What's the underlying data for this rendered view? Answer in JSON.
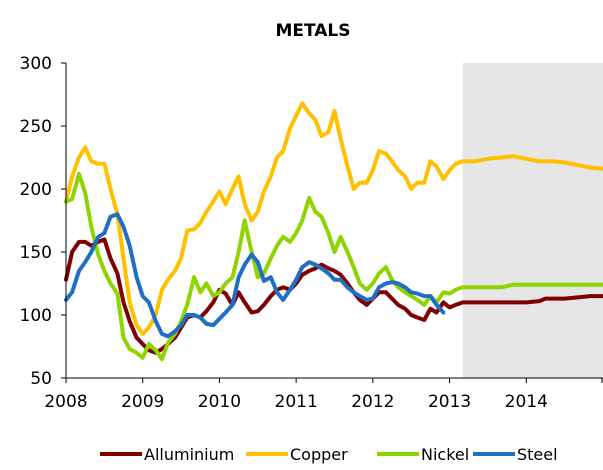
{
  "chart_data": {
    "type": "line",
    "title": "METALS",
    "xlabel": "",
    "ylabel": "",
    "xlim": [
      2008,
      2015
    ],
    "ylim": [
      50,
      300
    ],
    "yticks": [
      50,
      100,
      150,
      200,
      250,
      300
    ],
    "xtick_labels": [
      "2008",
      "2009",
      "2010",
      "2011",
      "2012",
      "2013",
      "2014"
    ],
    "forecast_shade_from": 2013.17,
    "legend_position": "bottom",
    "series": [
      {
        "name": "Alluminium",
        "color": "#7f0000",
        "points": [
          [
            2008.0,
            128
          ],
          [
            2008.08,
            150
          ],
          [
            2008.17,
            158
          ],
          [
            2008.25,
            158
          ],
          [
            2008.33,
            155
          ],
          [
            2008.42,
            158
          ],
          [
            2008.5,
            160
          ],
          [
            2008.58,
            145
          ],
          [
            2008.67,
            133
          ],
          [
            2008.75,
            110
          ],
          [
            2008.83,
            95
          ],
          [
            2008.92,
            82
          ],
          [
            2009.0,
            77
          ],
          [
            2009.08,
            72
          ],
          [
            2009.17,
            70
          ],
          [
            2009.25,
            73
          ],
          [
            2009.33,
            77
          ],
          [
            2009.42,
            82
          ],
          [
            2009.5,
            90
          ],
          [
            2009.58,
            98
          ],
          [
            2009.67,
            100
          ],
          [
            2009.75,
            98
          ],
          [
            2009.83,
            103
          ],
          [
            2009.92,
            110
          ],
          [
            2010.0,
            120
          ],
          [
            2010.08,
            117
          ],
          [
            2010.17,
            108
          ],
          [
            2010.25,
            118
          ],
          [
            2010.33,
            110
          ],
          [
            2010.42,
            102
          ],
          [
            2010.5,
            103
          ],
          [
            2010.58,
            108
          ],
          [
            2010.67,
            115
          ],
          [
            2010.75,
            120
          ],
          [
            2010.83,
            122
          ],
          [
            2010.92,
            120
          ],
          [
            2011.0,
            125
          ],
          [
            2011.08,
            132
          ],
          [
            2011.17,
            135
          ],
          [
            2011.25,
            137
          ],
          [
            2011.33,
            140
          ],
          [
            2011.42,
            137
          ],
          [
            2011.5,
            135
          ],
          [
            2011.58,
            132
          ],
          [
            2011.67,
            125
          ],
          [
            2011.75,
            118
          ],
          [
            2011.83,
            112
          ],
          [
            2011.92,
            108
          ],
          [
            2012.0,
            113
          ],
          [
            2012.08,
            118
          ],
          [
            2012.17,
            118
          ],
          [
            2012.25,
            113
          ],
          [
            2012.33,
            108
          ],
          [
            2012.42,
            105
          ],
          [
            2012.5,
            100
          ],
          [
            2012.58,
            98
          ],
          [
            2012.67,
            96
          ],
          [
            2012.75,
            105
          ],
          [
            2012.83,
            102
          ],
          [
            2012.92,
            110
          ],
          [
            2013.0,
            106
          ],
          [
            2013.08,
            108
          ],
          [
            2013.17,
            110
          ],
          [
            2013.33,
            110
          ],
          [
            2013.5,
            110
          ],
          [
            2013.67,
            110
          ],
          [
            2013.83,
            110
          ],
          [
            2014.0,
            110
          ],
          [
            2014.17,
            111
          ],
          [
            2014.25,
            113
          ],
          [
            2014.5,
            113
          ],
          [
            2014.67,
            114
          ],
          [
            2014.83,
            115
          ],
          [
            2015.0,
            115
          ]
        ]
      },
      {
        "name": "Copper",
        "color": "#ffc000",
        "points": [
          [
            2008.0,
            190
          ],
          [
            2008.08,
            210
          ],
          [
            2008.17,
            225
          ],
          [
            2008.25,
            233
          ],
          [
            2008.33,
            222
          ],
          [
            2008.42,
            220
          ],
          [
            2008.5,
            220
          ],
          [
            2008.58,
            200
          ],
          [
            2008.67,
            180
          ],
          [
            2008.75,
            145
          ],
          [
            2008.83,
            110
          ],
          [
            2008.92,
            92
          ],
          [
            2009.0,
            85
          ],
          [
            2009.08,
            90
          ],
          [
            2009.17,
            100
          ],
          [
            2009.25,
            120
          ],
          [
            2009.33,
            128
          ],
          [
            2009.42,
            135
          ],
          [
            2009.5,
            145
          ],
          [
            2009.58,
            167
          ],
          [
            2009.67,
            168
          ],
          [
            2009.75,
            173
          ],
          [
            2009.83,
            182
          ],
          [
            2009.92,
            190
          ],
          [
            2010.0,
            198
          ],
          [
            2010.08,
            188
          ],
          [
            2010.17,
            200
          ],
          [
            2010.25,
            210
          ],
          [
            2010.33,
            188
          ],
          [
            2010.42,
            175
          ],
          [
            2010.5,
            182
          ],
          [
            2010.58,
            198
          ],
          [
            2010.67,
            210
          ],
          [
            2010.75,
            225
          ],
          [
            2010.83,
            230
          ],
          [
            2010.92,
            248
          ],
          [
            2011.0,
            258
          ],
          [
            2011.08,
            268
          ],
          [
            2011.17,
            260
          ],
          [
            2011.25,
            255
          ],
          [
            2011.33,
            242
          ],
          [
            2011.42,
            245
          ],
          [
            2011.5,
            262
          ],
          [
            2011.58,
            240
          ],
          [
            2011.67,
            218
          ],
          [
            2011.75,
            200
          ],
          [
            2011.83,
            205
          ],
          [
            2011.92,
            205
          ],
          [
            2012.0,
            215
          ],
          [
            2012.08,
            230
          ],
          [
            2012.17,
            228
          ],
          [
            2012.25,
            222
          ],
          [
            2012.33,
            215
          ],
          [
            2012.42,
            210
          ],
          [
            2012.5,
            200
          ],
          [
            2012.58,
            205
          ],
          [
            2012.67,
            205
          ],
          [
            2012.75,
            222
          ],
          [
            2012.83,
            218
          ],
          [
            2012.92,
            208
          ],
          [
            2013.0,
            215
          ],
          [
            2013.08,
            220
          ],
          [
            2013.17,
            222
          ],
          [
            2013.33,
            222
          ],
          [
            2013.5,
            224
          ],
          [
            2013.67,
            225
          ],
          [
            2013.83,
            226
          ],
          [
            2014.0,
            224
          ],
          [
            2014.17,
            222
          ],
          [
            2014.33,
            222
          ],
          [
            2014.5,
            221
          ],
          [
            2014.67,
            219
          ],
          [
            2014.83,
            217
          ],
          [
            2015.0,
            216
          ]
        ]
      },
      {
        "name": "Nickel",
        "color": "#8fd400",
        "points": [
          [
            2008.0,
            190
          ],
          [
            2008.08,
            192
          ],
          [
            2008.17,
            212
          ],
          [
            2008.25,
            197
          ],
          [
            2008.33,
            170
          ],
          [
            2008.42,
            148
          ],
          [
            2008.5,
            135
          ],
          [
            2008.58,
            125
          ],
          [
            2008.67,
            117
          ],
          [
            2008.75,
            82
          ],
          [
            2008.83,
            73
          ],
          [
            2008.92,
            70
          ],
          [
            2009.0,
            66
          ],
          [
            2009.08,
            77
          ],
          [
            2009.17,
            72
          ],
          [
            2009.25,
            65
          ],
          [
            2009.33,
            78
          ],
          [
            2009.42,
            85
          ],
          [
            2009.5,
            95
          ],
          [
            2009.58,
            108
          ],
          [
            2009.67,
            130
          ],
          [
            2009.75,
            118
          ],
          [
            2009.83,
            125
          ],
          [
            2009.92,
            115
          ],
          [
            2010.0,
            118
          ],
          [
            2010.08,
            125
          ],
          [
            2010.17,
            130
          ],
          [
            2010.25,
            150
          ],
          [
            2010.33,
            175
          ],
          [
            2010.42,
            150
          ],
          [
            2010.5,
            130
          ],
          [
            2010.58,
            133
          ],
          [
            2010.67,
            145
          ],
          [
            2010.75,
            155
          ],
          [
            2010.83,
            162
          ],
          [
            2010.92,
            158
          ],
          [
            2011.0,
            165
          ],
          [
            2011.08,
            175
          ],
          [
            2011.17,
            193
          ],
          [
            2011.25,
            182
          ],
          [
            2011.33,
            178
          ],
          [
            2011.42,
            165
          ],
          [
            2011.5,
            150
          ],
          [
            2011.58,
            162
          ],
          [
            2011.67,
            150
          ],
          [
            2011.75,
            138
          ],
          [
            2011.83,
            125
          ],
          [
            2011.92,
            120
          ],
          [
            2012.0,
            125
          ],
          [
            2012.08,
            133
          ],
          [
            2012.17,
            138
          ],
          [
            2012.25,
            128
          ],
          [
            2012.33,
            122
          ],
          [
            2012.42,
            118
          ],
          [
            2012.5,
            115
          ],
          [
            2012.58,
            112
          ],
          [
            2012.67,
            108
          ],
          [
            2012.75,
            115
          ],
          [
            2012.83,
            110
          ],
          [
            2012.92,
            118
          ],
          [
            2013.0,
            117
          ],
          [
            2013.08,
            120
          ],
          [
            2013.17,
            122
          ],
          [
            2013.33,
            122
          ],
          [
            2013.5,
            122
          ],
          [
            2013.67,
            122
          ],
          [
            2013.83,
            124
          ],
          [
            2014.0,
            124
          ],
          [
            2014.33,
            124
          ],
          [
            2014.67,
            124
          ],
          [
            2015.0,
            124
          ]
        ]
      },
      {
        "name": "Steel",
        "color": "#1f6fc5",
        "points": [
          [
            2008.0,
            112
          ],
          [
            2008.08,
            118
          ],
          [
            2008.17,
            135
          ],
          [
            2008.25,
            142
          ],
          [
            2008.33,
            150
          ],
          [
            2008.42,
            162
          ],
          [
            2008.5,
            165
          ],
          [
            2008.58,
            178
          ],
          [
            2008.67,
            180
          ],
          [
            2008.75,
            170
          ],
          [
            2008.83,
            155
          ],
          [
            2008.92,
            130
          ],
          [
            2009.0,
            115
          ],
          [
            2009.08,
            110
          ],
          [
            2009.17,
            95
          ],
          [
            2009.25,
            85
          ],
          [
            2009.33,
            83
          ],
          [
            2009.42,
            87
          ],
          [
            2009.5,
            92
          ],
          [
            2009.58,
            100
          ],
          [
            2009.67,
            100
          ],
          [
            2009.75,
            98
          ],
          [
            2009.83,
            93
          ],
          [
            2009.92,
            92
          ],
          [
            2010.0,
            97
          ],
          [
            2010.08,
            102
          ],
          [
            2010.17,
            108
          ],
          [
            2010.25,
            130
          ],
          [
            2010.33,
            140
          ],
          [
            2010.42,
            148
          ],
          [
            2010.5,
            142
          ],
          [
            2010.58,
            127
          ],
          [
            2010.67,
            130
          ],
          [
            2010.75,
            118
          ],
          [
            2010.83,
            112
          ],
          [
            2010.92,
            120
          ],
          [
            2011.0,
            128
          ],
          [
            2011.08,
            138
          ],
          [
            2011.17,
            142
          ],
          [
            2011.25,
            140
          ],
          [
            2011.33,
            137
          ],
          [
            2011.42,
            133
          ],
          [
            2011.5,
            128
          ],
          [
            2011.58,
            128
          ],
          [
            2011.67,
            122
          ],
          [
            2011.75,
            118
          ],
          [
            2011.83,
            115
          ],
          [
            2011.92,
            112
          ],
          [
            2012.0,
            113
          ],
          [
            2012.08,
            122
          ],
          [
            2012.17,
            125
          ],
          [
            2012.25,
            126
          ],
          [
            2012.33,
            125
          ],
          [
            2012.42,
            122
          ],
          [
            2012.5,
            118
          ],
          [
            2012.58,
            117
          ],
          [
            2012.67,
            115
          ],
          [
            2012.75,
            115
          ],
          [
            2012.83,
            108
          ],
          [
            2012.92,
            102
          ]
        ]
      }
    ]
  }
}
